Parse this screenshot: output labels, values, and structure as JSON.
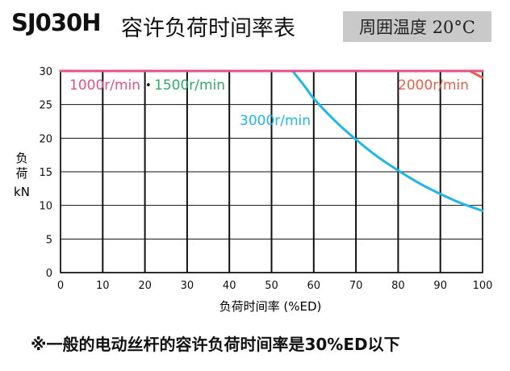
{
  "header": {
    "model": "SJ030H",
    "title": "容许负荷时间率表",
    "temperature": "周囲温度 20°C"
  },
  "footnote": "※一般的电动丝杆的容许负荷时间率是30%ED以下",
  "chart_data": {
    "type": "line",
    "xlabel": "负荷时间率 (%ED)",
    "ylabel_lines": [
      "负",
      "荷",
      "kN"
    ],
    "xlim": [
      0,
      100
    ],
    "ylim": [
      0,
      30
    ],
    "x_ticks": [
      0,
      10,
      20,
      30,
      40,
      50,
      60,
      70,
      80,
      90,
      100
    ],
    "y_ticks": [
      0,
      5,
      10,
      15,
      20,
      25,
      30
    ],
    "grid": true,
    "series": [
      {
        "name": "1000r/min",
        "color": "#e0528a",
        "x": [
          0,
          100
        ],
        "y": [
          30,
          30
        ]
      },
      {
        "name": "1500r/min",
        "color": "#2fa86a",
        "x": [
          0,
          100
        ],
        "y": [
          30,
          30
        ]
      },
      {
        "name": "2000r/min",
        "color": "#e8604c",
        "x": [
          0,
          97,
          100
        ],
        "y": [
          30,
          30,
          29
        ]
      },
      {
        "name": "3000r/min",
        "color": "#1fb5e6",
        "x": [
          55,
          58,
          60,
          65,
          70,
          75,
          80,
          85,
          90,
          95,
          100
        ],
        "y": [
          30,
          27.6,
          25.9,
          22.6,
          19.8,
          17.3,
          15.2,
          13.3,
          11.7,
          10.3,
          9.2
        ]
      }
    ],
    "separator": "•"
  }
}
